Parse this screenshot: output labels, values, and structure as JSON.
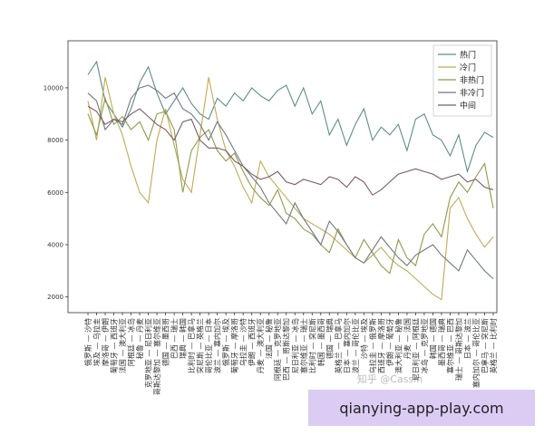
{
  "chart_data": {
    "type": "line",
    "categories": [
      "俄罗斯 — 沙特",
      "埃及 — 乌拉圭",
      "摩洛哥 — 伊朗",
      "葡萄牙 — 西班牙",
      "法国 — 澳大利亚",
      "阿根廷 — 冰岛",
      "秘鲁 — 丹麦",
      "克罗地亚 — 尼日利亚",
      "哥斯达黎加 — 塞尔维亚",
      "德国 — 墨西哥",
      "巴西 — 瑞士",
      "瑞典 — 韩国",
      "比利时 — 巴拿马",
      "突尼斯 — 英格兰",
      "哥伦比亚 — 日本",
      "波兰 — 塞内加尔",
      "俄罗斯 — 埃及",
      "葡萄牙 — 摩洛哥",
      "乌拉圭 — 沙特",
      "伊朗 — 西班牙",
      "丹麦 — 澳大利亚",
      "法国 — 秘鲁",
      "阿根廷 — 克罗地亚",
      "巴西 — 哥斯达黎加",
      "尼日利亚 — 冰岛",
      "塞尔维亚 — 瑞士",
      "比利时 — 突尼斯",
      "韩国 — 墨西哥",
      "德国 — 瑞典",
      "英格兰 — 巴拿马",
      "日本 — 塞内加尔",
      "波兰 — 哥伦比亚",
      "沙特 — 埃及",
      "乌拉圭 — 俄罗斯",
      "西班牙 — 摩洛哥",
      "伊朗 — 葡萄牙",
      "澳大利亚 — 秘鲁",
      "丹麦 — 法国",
      "尼日利亚 — 阿根廷",
      "冰岛 — 克罗地亚",
      "韩国 — 德国",
      "墨西哥 — 瑞典",
      "塞尔维亚 — 巴西",
      "瑞士 — 哥斯达黎加",
      "日本 — 波兰",
      "塞内加尔 — 哥伦比亚",
      "巴拿马 — 突尼斯",
      "英格兰 — 比利时"
    ],
    "series": [
      {
        "name": "热门",
        "color": "#5e8c8a",
        "values": [
          10500,
          11000,
          9500,
          9000,
          8500,
          9200,
          10200,
          10800,
          9800,
          9000,
          9500,
          10000,
          9400,
          9000,
          8800,
          9600,
          9300,
          9800,
          9500,
          10000,
          9700,
          9500,
          9900,
          10100,
          9300,
          10000,
          9000,
          9500,
          8200,
          8800,
          7800,
          8600,
          9200,
          8000,
          8500,
          8200,
          8600,
          7600,
          8800,
          9000,
          8200,
          8000,
          7400,
          8200,
          6800,
          7800,
          8300,
          8100
        ]
      },
      {
        "name": "冷门",
        "color": "#c2aa55",
        "values": [
          9500,
          8000,
          10400,
          9000,
          8200,
          7000,
          6000,
          5600,
          8000,
          9200,
          7800,
          6500,
          6000,
          8200,
          10400,
          8800,
          7600,
          7000,
          6200,
          5600,
          7200,
          6600,
          6200,
          5800,
          5400,
          5000,
          4800,
          4600,
          4400,
          4100,
          3800,
          3500,
          3300,
          3600,
          3900,
          3500,
          3200,
          3000,
          2700,
          2400,
          2100,
          1900,
          5400,
          5800,
          5000,
          4400,
          3900,
          4300
        ]
      },
      {
        "name": "非热门",
        "color": "#8e9b4c",
        "values": [
          9000,
          8200,
          9600,
          8600,
          8900,
          8400,
          8700,
          8000,
          9000,
          9100,
          8400,
          6000,
          7600,
          8100,
          8400,
          7600,
          7200,
          7500,
          6800,
          6200,
          5800,
          5500,
          6100,
          5200,
          5000,
          4600,
          4400,
          4000,
          3700,
          4600,
          4000,
          3500,
          4200,
          3700,
          3200,
          2900,
          4200,
          3500,
          3200,
          4400,
          4800,
          4300,
          5800,
          6400,
          6000,
          6600,
          7100,
          5400
        ]
      },
      {
        "name": "非冷门",
        "color": "#707880",
        "values": [
          9800,
          9500,
          8400,
          8800,
          8600,
          9600,
          10000,
          10100,
          9900,
          9600,
          9800,
          9200,
          9000,
          8600,
          8000,
          8700,
          8200,
          7600,
          7000,
          6600,
          6200,
          5600,
          5200,
          4800,
          5600,
          5000,
          4500,
          4000,
          4900,
          4500,
          4000,
          3500,
          3300,
          3800,
          4300,
          3900,
          3500,
          3200,
          3600,
          3800,
          4000,
          3600,
          3300,
          3000,
          3800,
          3400,
          3000,
          2700
        ]
      },
      {
        "name": "中间",
        "color": "#7b5a66",
        "values": [
          9300,
          9100,
          8600,
          8800,
          8700,
          9000,
          9200,
          8900,
          8600,
          8400,
          8000,
          8700,
          8800,
          8000,
          7700,
          7700,
          7600,
          7200,
          7000,
          6700,
          6500,
          6600,
          6800,
          6400,
          6300,
          6500,
          6400,
          6300,
          6600,
          6500,
          6200,
          6600,
          6400,
          5900,
          6100,
          6400,
          6700,
          6800,
          6900,
          6800,
          6700,
          6500,
          6600,
          6700,
          6400,
          6500,
          6200,
          6100
        ]
      }
    ],
    "ylim": [
      1400,
      11800
    ],
    "yticks": [
      2000,
      4000,
      6000,
      8000,
      10000
    ],
    "legend": "upper right"
  },
  "watermark": "知乎 @Cassin",
  "banner": "qianying-app-play.com"
}
